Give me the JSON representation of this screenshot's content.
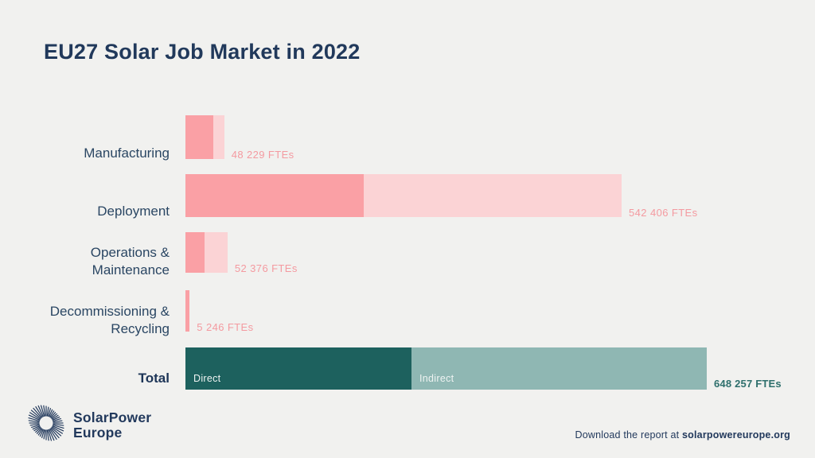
{
  "title": {
    "bold_part": "EU27",
    "rest_part": " Solar Job Market in 2022"
  },
  "colors": {
    "background": "#f1f1ef",
    "navy_text": "#21395b",
    "pink_direct": "#faa0a5",
    "pink_indirect": "#fbd3d5",
    "teal_direct": "#1d615e",
    "teal_indirect": "#8fb7b3",
    "pink_value_text": "#f49aa0",
    "teal_value_text": "#2e6f6c"
  },
  "chart_data": {
    "type": "bar",
    "orientation": "horizontal",
    "unit": "FTEs",
    "title": "EU27 Solar Job Market in 2022",
    "legend": [
      "Direct",
      "Indirect"
    ],
    "legend_position": "inside-total-bar",
    "grid": false,
    "axis_labels_shown": false,
    "note": "direct/indirect split per row estimated from segment widths; totals are labeled on chart",
    "direct_label": "Direct",
    "indirect_label": "Indirect",
    "rows": [
      {
        "label": "Manufacturing",
        "total": 48229,
        "direct": 34500,
        "indirect": 13729,
        "value_label": "48 229 FTEs",
        "palette": "pink"
      },
      {
        "label": "Deployment",
        "total": 542406,
        "direct": 221700,
        "indirect": 320706,
        "value_label": "542 406 FTEs",
        "palette": "pink"
      },
      {
        "label": "Operations & Maintenance",
        "total": 52376,
        "direct": 23800,
        "indirect": 28576,
        "value_label": "52 376 FTEs",
        "palette": "pink"
      },
      {
        "label": "Decommissioning & Recycling",
        "total": 5246,
        "direct": 5246,
        "indirect": 0,
        "value_label": "5 246 FTEs",
        "palette": "pink"
      },
      {
        "label": "Total",
        "total": 648257,
        "direct": 281100,
        "indirect": 367157,
        "value_label": "648 257 FTEs",
        "palette": "teal"
      }
    ]
  },
  "footer": {
    "logo_line1": "SolarPower",
    "logo_line2": "Europe",
    "download_prefix": "Download the report at ",
    "download_url": "solarpowereurope.org"
  }
}
